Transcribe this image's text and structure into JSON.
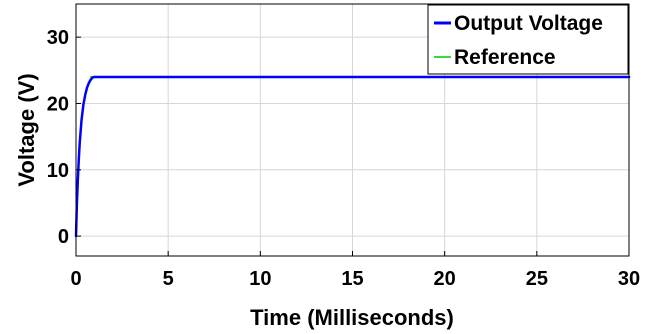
{
  "chart_data": {
    "type": "line",
    "xlabel": "Time (Milliseconds)",
    "ylabel": "Voltage (V)",
    "xlim": [
      0,
      30
    ],
    "ylim": [
      -3,
      35
    ],
    "xticks": [
      0,
      5,
      10,
      15,
      20,
      25,
      30
    ],
    "yticks": [
      0,
      10,
      20,
      30
    ],
    "grid": true,
    "legend_position": "top-right",
    "series": [
      {
        "name": "Output Voltage",
        "color": "#0000ff",
        "x": [
          0,
          0.05,
          0.1,
          0.15,
          0.2,
          0.3,
          0.4,
          0.5,
          0.6,
          0.7,
          0.8,
          0.9,
          1.0,
          1.5,
          2,
          5,
          10,
          15,
          20,
          25,
          30
        ],
        "y": [
          0,
          5,
          8.5,
          11.5,
          14,
          17.5,
          19.8,
          21.3,
          22.4,
          23.1,
          23.6,
          23.9,
          24,
          24,
          24,
          24,
          24,
          24,
          24,
          24,
          24
        ]
      },
      {
        "name": "Reference",
        "color": "#33dd33",
        "x": [
          0.8,
          30
        ],
        "y": [
          24,
          24
        ]
      }
    ]
  }
}
